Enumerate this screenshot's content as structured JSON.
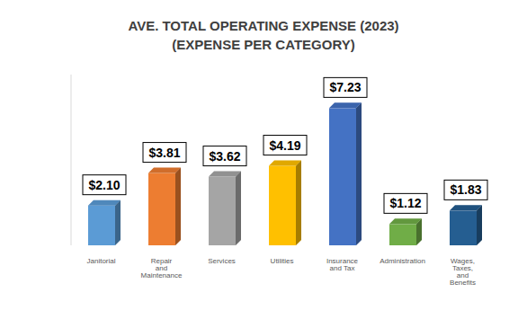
{
  "chart_data": {
    "type": "bar",
    "title": "AVE. TOTAL OPERATING EXPENSE (2023)",
    "subtitle": "(EXPENSE PER CATEGORY)",
    "categories": [
      "Janitorial",
      "Repair and Maintenance",
      "Services",
      "Utilities",
      "Insurance and Tax",
      "Administration",
      "Wages, Taxes, and Benefits"
    ],
    "values": [
      2.1,
      3.81,
      3.62,
      4.19,
      7.23,
      1.12,
      1.83
    ],
    "value_labels": [
      "$2.10",
      "$3.81",
      "$3.62",
      "$4.19",
      "$7.23",
      "$1.12",
      "$1.83"
    ],
    "colors": [
      "#5b9bd5",
      "#ed7d31",
      "#a5a5a5",
      "#ffc000",
      "#4472c4",
      "#70ad47",
      "#255e91"
    ],
    "ylim": [
      0,
      9
    ],
    "data_labels": true,
    "tick_labels": "x",
    "grid": false
  }
}
